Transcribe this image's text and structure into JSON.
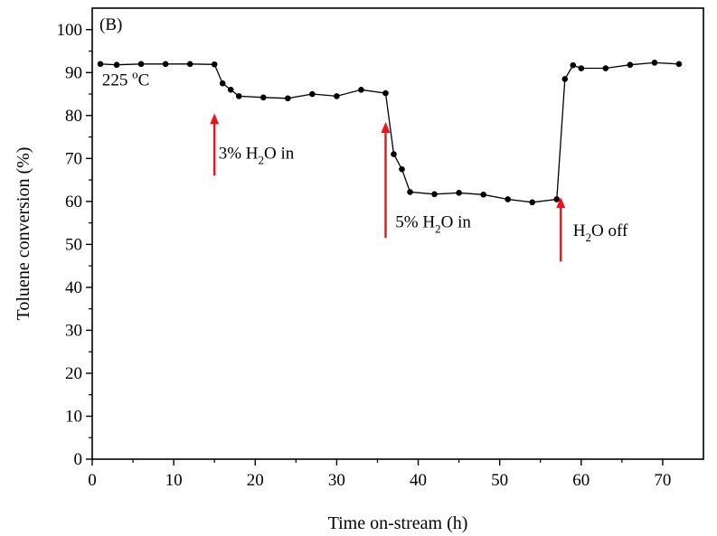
{
  "chart_data": {
    "type": "line",
    "panel_label": "(B)",
    "xlabel": "Time on-stream (h)",
    "ylabel": "Toluene conversion (%)",
    "xlim": [
      0,
      75
    ],
    "ylim": [
      0,
      105
    ],
    "x_ticks": [
      0,
      10,
      20,
      30,
      40,
      50,
      60,
      70
    ],
    "y_ticks": [
      0,
      10,
      20,
      30,
      40,
      50,
      60,
      70,
      80,
      90,
      100
    ],
    "grid": false,
    "colors": {
      "line": "#000000",
      "marker": "#000000",
      "arrow": "#e8141c"
    },
    "series": [
      {
        "x": [
          1,
          3,
          6,
          9,
          12,
          15,
          16,
          17,
          18,
          21,
          24,
          27,
          30,
          33,
          36,
          37,
          38,
          39,
          42,
          45,
          48,
          51,
          54,
          57,
          58,
          59,
          60,
          63,
          66,
          69,
          72
        ],
        "y": [
          92,
          91.8,
          92,
          92,
          92,
          91.9,
          87.5,
          86,
          84.5,
          84.2,
          84,
          85,
          84.5,
          86,
          85.2,
          71,
          67.5,
          62.2,
          61.7,
          62,
          61.6,
          60.5,
          59.8,
          60.5,
          88.5,
          91.7,
          91,
          91,
          91.8,
          92.3,
          92
        ]
      }
    ],
    "annotations": [
      {
        "id": "temp",
        "text_main": "225 ",
        "sup": "o",
        "text_after": "C",
        "x": 1.2,
        "y": 87
      },
      {
        "id": "h2o-3",
        "text_before": "3% H",
        "sub": "2",
        "text_after": "O in",
        "x": 15.5,
        "y": 70,
        "arrow_x": 15,
        "arrow_from": 66,
        "arrow_to": 80.5
      },
      {
        "id": "h2o-5",
        "text_before": "5% H",
        "sub": "2",
        "text_after": "O in",
        "x": 37.2,
        "y": 54,
        "arrow_x": 36,
        "arrow_from": 51.5,
        "arrow_to": 78.5
      },
      {
        "id": "h2o-off",
        "text_before": "H",
        "sub": "2",
        "text_after": "O off",
        "x": 59,
        "y": 52,
        "arrow_x": 57.5,
        "arrow_from": 46,
        "arrow_to": 61
      }
    ]
  }
}
